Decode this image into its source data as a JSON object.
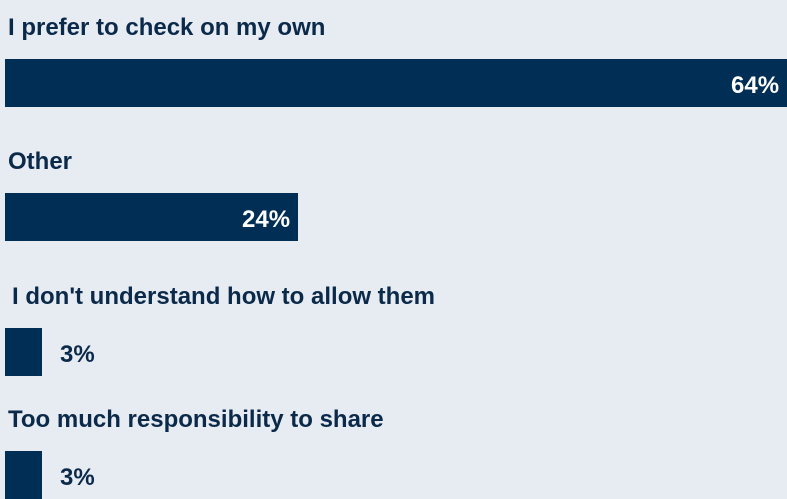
{
  "chart_data": {
    "type": "bar",
    "orientation": "horizontal",
    "categories": [
      "I prefer to check on my own",
      "Other",
      "I don't understand how to allow them",
      "Too much responsibility to share"
    ],
    "values": [
      64,
      24,
      3,
      3
    ],
    "value_labels": [
      "64%",
      "24%",
      "3%",
      "3%"
    ],
    "unit": "%",
    "xlim": [
      0,
      64
    ],
    "grid": false,
    "legend": "none",
    "bar_color": "#002e55",
    "label_color": "#0b2a4a",
    "background_color": "#e7ebf2"
  }
}
